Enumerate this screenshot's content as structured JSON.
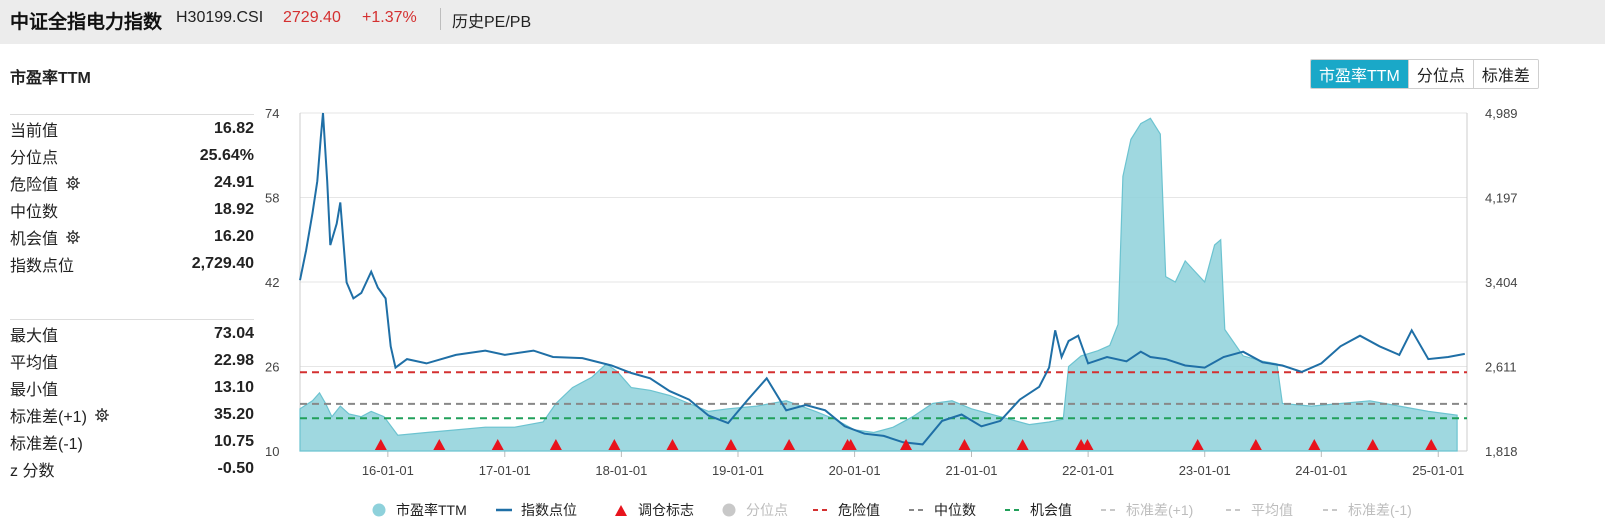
{
  "header": {
    "title": "中证全指电力指数",
    "code": "H30199.CSI",
    "price": "2729.40",
    "change": "+1.37%",
    "history_link": "历史PE/PB"
  },
  "section_title": "市盈率TTM",
  "stats_top": [
    {
      "label": "当前值",
      "value": "16.82",
      "gear": false
    },
    {
      "label": "分位点",
      "value": "25.64%",
      "gear": false
    },
    {
      "label": "危险值",
      "value": "24.91",
      "gear": true
    },
    {
      "label": "中位数",
      "value": "18.92",
      "gear": false
    },
    {
      "label": "机会值",
      "value": "16.20",
      "gear": true
    },
    {
      "label": "指数点位",
      "value": "2,729.40",
      "gear": false
    }
  ],
  "stats_bottom": [
    {
      "label": "最大值",
      "value": "73.04",
      "gear": false
    },
    {
      "label": "平均值",
      "value": "22.98",
      "gear": false
    },
    {
      "label": "最小值",
      "value": "13.10",
      "gear": false
    },
    {
      "label": "标准差(+1)",
      "value": "35.20",
      "gear": true
    },
    {
      "label": "标准差(-1)",
      "value": "10.75",
      "gear": false
    },
    {
      "label": "z 分数",
      "value": "-0.50",
      "gear": false
    }
  ],
  "tabs": [
    {
      "label": "市盈率TTM",
      "active": true
    },
    {
      "label": "分位点",
      "active": false
    },
    {
      "label": "标准差",
      "active": false
    }
  ],
  "colors": {
    "pe_fill": "#8ed1db",
    "pe_line": "#6cc3d0",
    "index_line": "#1f6fa6",
    "danger": "#d43030",
    "median": "#888888",
    "opportunity": "#21a05a",
    "marker": "#e8141d",
    "accent": "#1aa8c8",
    "disabled": "#c8c8c8"
  },
  "chart_data": {
    "type": "area",
    "x_tick_labels": [
      "16-01-01",
      "17-01-01",
      "18-01-01",
      "19-01-01",
      "20-01-01",
      "21-01-01",
      "22-01-01",
      "23-01-01",
      "24-01-01",
      "25-01-01"
    ],
    "x_tick_dates": [
      "2016-01-01",
      "2017-01-01",
      "2018-01-01",
      "2019-01-01",
      "2020-01-01",
      "2021-01-01",
      "2022-01-01",
      "2023-01-01",
      "2024-01-01",
      "2025-01-01"
    ],
    "x_range": [
      "2015-04-01",
      "2025-04-01"
    ],
    "y_left": {
      "ticks": [
        "74",
        "58",
        "42",
        "26",
        "10"
      ],
      "range": [
        10,
        74
      ]
    },
    "y_right": {
      "ticks": [
        "4,989",
        "4,197",
        "3,404",
        "2,611",
        "1,818"
      ],
      "range": [
        1818,
        4989
      ]
    },
    "reference_lines": [
      {
        "name": "危险值",
        "value": 24.91,
        "style": "dashed",
        "color": "#d43030"
      },
      {
        "name": "中位数",
        "value": 18.92,
        "style": "dashed",
        "color": "#888888"
      },
      {
        "name": "机会值",
        "value": 16.2,
        "style": "dashed",
        "color": "#21a05a"
      }
    ],
    "series": [
      {
        "name": "市盈率TTM",
        "axis": "left",
        "kind": "area",
        "points": [
          [
            "2015-04-01",
            18
          ],
          [
            "2015-05-10",
            19.5
          ],
          [
            "2015-06-01",
            21
          ],
          [
            "2015-06-20",
            19
          ],
          [
            "2015-07-10",
            16.5
          ],
          [
            "2015-08-05",
            18.5
          ],
          [
            "2015-09-01",
            17
          ],
          [
            "2015-10-10",
            16.5
          ],
          [
            "2015-11-10",
            17.5
          ],
          [
            "2015-12-20",
            16.5
          ],
          [
            "2016-02-01",
            13
          ],
          [
            "2016-05-01",
            13.5
          ],
          [
            "2016-08-01",
            14
          ],
          [
            "2016-11-01",
            14.5
          ],
          [
            "2017-02-01",
            14.5
          ],
          [
            "2017-05-01",
            15.5
          ],
          [
            "2017-06-10",
            19
          ],
          [
            "2017-08-01",
            22
          ],
          [
            "2017-10-01",
            24
          ],
          [
            "2017-11-15",
            26.5
          ],
          [
            "2017-12-20",
            25
          ],
          [
            "2018-02-01",
            22
          ],
          [
            "2018-04-01",
            21.5
          ],
          [
            "2018-06-01",
            20.5
          ],
          [
            "2018-08-01",
            19
          ],
          [
            "2018-10-01",
            17.5
          ],
          [
            "2018-12-01",
            18
          ],
          [
            "2019-03-01",
            18.5
          ],
          [
            "2019-06-01",
            19.5
          ],
          [
            "2019-09-01",
            17.5
          ],
          [
            "2019-11-01",
            16
          ],
          [
            "2020-01-01",
            14
          ],
          [
            "2020-03-01",
            13.5
          ],
          [
            "2020-05-01",
            14.5
          ],
          [
            "2020-07-01",
            16.5
          ],
          [
            "2020-09-01",
            19
          ],
          [
            "2020-11-01",
            19.5
          ],
          [
            "2021-01-01",
            18
          ],
          [
            "2021-04-01",
            16.5
          ],
          [
            "2021-07-01",
            15
          ],
          [
            "2021-09-01",
            15.5
          ],
          [
            "2021-10-15",
            16
          ],
          [
            "2021-11-01",
            26
          ],
          [
            "2021-12-10",
            28
          ],
          [
            "2022-02-01",
            29
          ],
          [
            "2022-03-10",
            30
          ],
          [
            "2022-04-05",
            34
          ],
          [
            "2022-04-20",
            62
          ],
          [
            "2022-05-15",
            69
          ],
          [
            "2022-06-15",
            72
          ],
          [
            "2022-07-15",
            73
          ],
          [
            "2022-08-15",
            70
          ],
          [
            "2022-09-01",
            43
          ],
          [
            "2022-10-01",
            42
          ],
          [
            "2022-11-01",
            46
          ],
          [
            "2022-12-01",
            44
          ],
          [
            "2023-01-01",
            42
          ],
          [
            "2023-02-01",
            49
          ],
          [
            "2023-02-20",
            50
          ],
          [
            "2023-03-05",
            33
          ],
          [
            "2023-05-01",
            28
          ],
          [
            "2023-07-01",
            27
          ],
          [
            "2023-08-15",
            26.5
          ],
          [
            "2023-09-01",
            19
          ],
          [
            "2023-12-01",
            18.5
          ],
          [
            "2024-03-01",
            19
          ],
          [
            "2024-06-01",
            19.5
          ],
          [
            "2024-09-01",
            18.5
          ],
          [
            "2024-12-01",
            17.5
          ],
          [
            "2025-03-01",
            16.8
          ]
        ]
      },
      {
        "name": "指数点位",
        "axis": "right",
        "kind": "line",
        "points": [
          [
            "2015-04-01",
            3420
          ],
          [
            "2015-04-20",
            3700
          ],
          [
            "2015-05-10",
            4050
          ],
          [
            "2015-05-25",
            4350
          ],
          [
            "2015-06-05",
            4760
          ],
          [
            "2015-06-12",
            4989
          ],
          [
            "2015-06-25",
            4350
          ],
          [
            "2015-07-05",
            3750
          ],
          [
            "2015-07-25",
            3950
          ],
          [
            "2015-08-05",
            4150
          ],
          [
            "2015-08-25",
            3400
          ],
          [
            "2015-09-15",
            3250
          ],
          [
            "2015-10-10",
            3300
          ],
          [
            "2015-11-10",
            3500
          ],
          [
            "2015-12-01",
            3350
          ],
          [
            "2015-12-25",
            3250
          ],
          [
            "2016-01-10",
            2800
          ],
          [
            "2016-01-25",
            2600
          ],
          [
            "2016-03-01",
            2680
          ],
          [
            "2016-05-01",
            2640
          ],
          [
            "2016-08-01",
            2720
          ],
          [
            "2016-11-01",
            2760
          ],
          [
            "2017-01-01",
            2720
          ],
          [
            "2017-04-01",
            2760
          ],
          [
            "2017-06-01",
            2700
          ],
          [
            "2017-09-01",
            2690
          ],
          [
            "2017-12-01",
            2620
          ],
          [
            "2018-02-01",
            2550
          ],
          [
            "2018-04-01",
            2500
          ],
          [
            "2018-06-01",
            2380
          ],
          [
            "2018-08-01",
            2300
          ],
          [
            "2018-10-01",
            2150
          ],
          [
            "2018-12-01",
            2080
          ],
          [
            "2019-02-01",
            2300
          ],
          [
            "2019-04-01",
            2500
          ],
          [
            "2019-06-01",
            2200
          ],
          [
            "2019-08-01",
            2250
          ],
          [
            "2019-10-01",
            2200
          ],
          [
            "2019-12-01",
            2050
          ],
          [
            "2020-02-01",
            1980
          ],
          [
            "2020-04-01",
            1960
          ],
          [
            "2020-06-01",
            1900
          ],
          [
            "2020-08-01",
            1880
          ],
          [
            "2020-10-01",
            2100
          ],
          [
            "2020-12-01",
            2160
          ],
          [
            "2021-02-01",
            2050
          ],
          [
            "2021-04-01",
            2100
          ],
          [
            "2021-06-01",
            2300
          ],
          [
            "2021-08-01",
            2420
          ],
          [
            "2021-09-01",
            2600
          ],
          [
            "2021-09-20",
            2950
          ],
          [
            "2021-10-10",
            2700
          ],
          [
            "2021-11-01",
            2850
          ],
          [
            "2021-12-01",
            2900
          ],
          [
            "2022-01-01",
            2640
          ],
          [
            "2022-03-01",
            2700
          ],
          [
            "2022-05-01",
            2660
          ],
          [
            "2022-06-15",
            2750
          ],
          [
            "2022-07-15",
            2700
          ],
          [
            "2022-09-01",
            2680
          ],
          [
            "2022-11-01",
            2620
          ],
          [
            "2023-01-01",
            2600
          ],
          [
            "2023-03-01",
            2700
          ],
          [
            "2023-05-01",
            2750
          ],
          [
            "2023-07-01",
            2650
          ],
          [
            "2023-09-01",
            2620
          ],
          [
            "2023-11-01",
            2560
          ],
          [
            "2024-01-01",
            2640
          ],
          [
            "2024-03-01",
            2800
          ],
          [
            "2024-05-01",
            2900
          ],
          [
            "2024-07-01",
            2800
          ],
          [
            "2024-09-01",
            2720
          ],
          [
            "2024-10-10",
            2950
          ],
          [
            "2024-12-01",
            2680
          ],
          [
            "2025-02-01",
            2700
          ],
          [
            "2025-03-25",
            2729
          ]
        ]
      }
    ],
    "rebalance_markers": [
      "2015-12-10",
      "2016-06-10",
      "2016-12-10",
      "2017-06-10",
      "2017-12-10",
      "2018-06-10",
      "2018-12-10",
      "2019-06-10",
      "2019-12-10",
      "2019-12-20",
      "2020-06-10",
      "2020-12-10",
      "2021-06-10",
      "2021-12-10",
      "2021-12-30",
      "2022-12-10",
      "2023-06-10",
      "2023-12-10",
      "2024-06-10",
      "2024-12-10"
    ],
    "legend": [
      {
        "label": "市盈率TTM",
        "symbol": "circle",
        "color": "#8ed1db",
        "enabled": true
      },
      {
        "label": "指数点位",
        "symbol": "line",
        "color": "#1f6fa6",
        "enabled": true
      },
      {
        "label": "调仓标志",
        "symbol": "triangle",
        "color": "#e8141d",
        "enabled": true
      },
      {
        "label": "分位点",
        "symbol": "circle",
        "color": "#c8c8c8",
        "enabled": false
      },
      {
        "label": "危险值",
        "symbol": "dash",
        "color": "#d43030",
        "enabled": true
      },
      {
        "label": "中位数",
        "symbol": "dash",
        "color": "#888888",
        "enabled": true
      },
      {
        "label": "机会值",
        "symbol": "dash",
        "color": "#21a05a",
        "enabled": true
      },
      {
        "label": "标准差(+1)",
        "symbol": "dash",
        "color": "#c8c8c8",
        "enabled": false
      },
      {
        "label": "平均值",
        "symbol": "dash",
        "color": "#c8c8c8",
        "enabled": false
      },
      {
        "label": "标准差(-1)",
        "symbol": "dash",
        "color": "#c8c8c8",
        "enabled": false
      }
    ]
  }
}
